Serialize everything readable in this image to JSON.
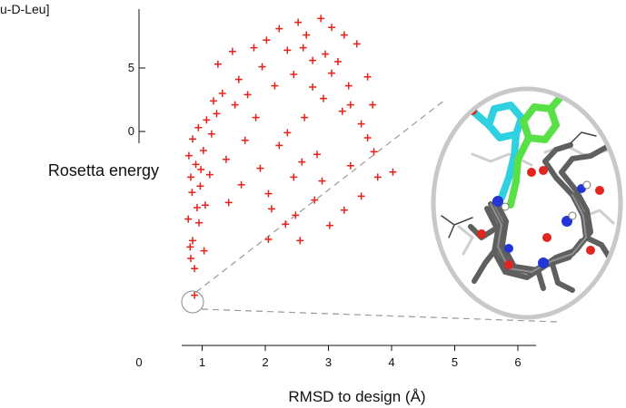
{
  "chart_data": {
    "type": "scatter",
    "title": "u-D-Leu]",
    "ylabel": "Rosetta energy",
    "xlabel": "RMSD to design (Å)",
    "xlim": [
      0,
      6.3
    ],
    "x_ticks": [
      0,
      1,
      2,
      3,
      4,
      5,
      6
    ],
    "x_tick_labels": [
      "0",
      "1",
      "2",
      "3",
      "4",
      "5",
      "6"
    ],
    "y_ticks": [
      5,
      0
    ],
    "y_tick_labels": [
      "5",
      "0"
    ],
    "marker": "plus",
    "marker_color": "#e8201a",
    "grid": false,
    "legend": "none",
    "highlighted_point": {
      "x": 0.88,
      "y": -12.9
    },
    "inset": {
      "kind": "molecular-structure-image",
      "shape": "ellipse",
      "callout_lines": "dashed"
    },
    "series": [
      {
        "values": [
          [
            0.88,
            -12.9
          ],
          [
            0.82,
            -10.0
          ],
          [
            0.81,
            -9.1
          ],
          [
            0.85,
            -8.6
          ],
          [
            0.95,
            -7.2
          ],
          [
            0.78,
            -6.9
          ],
          [
            0.92,
            -6.0
          ],
          [
            1.05,
            -5.8
          ],
          [
            0.84,
            -4.8
          ],
          [
            0.97,
            -4.3
          ],
          [
            0.82,
            -3.6
          ],
          [
            1.12,
            -3.4
          ],
          [
            0.9,
            -2.6
          ],
          [
            0.79,
            -1.9
          ],
          [
            1.02,
            -1.5
          ],
          [
            0.85,
            -0.6
          ],
          [
            1.15,
            -0.2
          ],
          [
            0.94,
            0.3
          ],
          [
            1.07,
            0.9
          ],
          [
            1.23,
            1.4
          ],
          [
            0.88,
            -10.8
          ],
          [
            1.03,
            -9.4
          ],
          [
            2.05,
            -8.5
          ],
          [
            2.32,
            -7.3
          ],
          [
            2.55,
            -8.6
          ],
          [
            2.1,
            -6.1
          ],
          [
            2.48,
            -6.6
          ],
          [
            3.02,
            -7.4
          ],
          [
            2.78,
            -5.4
          ],
          [
            3.25,
            -6.2
          ],
          [
            3.52,
            -5.1
          ],
          [
            3.78,
            -3.6
          ],
          [
            2.9,
            -3.9
          ],
          [
            3.35,
            -2.7
          ],
          [
            3.72,
            -1.6
          ],
          [
            4.02,
            -3.2
          ],
          [
            1.42,
            -5.6
          ],
          [
            1.62,
            -4.2
          ],
          [
            1.38,
            -2.2
          ],
          [
            1.68,
            -0.7
          ],
          [
            1.92,
            -2.9
          ],
          [
            2.22,
            -1.1
          ],
          [
            1.85,
            1.1
          ],
          [
            1.52,
            2.1
          ],
          [
            1.32,
            3.0
          ],
          [
            1.58,
            4.1
          ],
          [
            1.25,
            5.3
          ],
          [
            1.48,
            6.3
          ],
          [
            1.82,
            6.6
          ],
          [
            2.02,
            7.2
          ],
          [
            2.35,
            6.4
          ],
          [
            2.22,
            8.1
          ],
          [
            2.52,
            8.6
          ],
          [
            2.65,
            7.6
          ],
          [
            2.88,
            8.9
          ],
          [
            3.05,
            8.2
          ],
          [
            3.25,
            7.6
          ],
          [
            3.45,
            6.9
          ],
          [
            2.75,
            5.6
          ],
          [
            3.05,
            4.6
          ],
          [
            3.32,
            3.6
          ],
          [
            3.62,
            4.3
          ],
          [
            3.7,
            2.1
          ],
          [
            3.52,
            0.6
          ],
          [
            3.22,
            1.6
          ],
          [
            2.92,
            2.6
          ],
          [
            2.62,
            1.1
          ],
          [
            2.35,
            -0.1
          ],
          [
            2.75,
            3.5
          ],
          [
            3.15,
            5.5
          ],
          [
            2.45,
            4.5
          ],
          [
            2.15,
            3.6
          ],
          [
            1.95,
            5.1
          ],
          [
            2.6,
            6.6
          ],
          [
            2.95,
            6.1
          ],
          [
            3.35,
            2.1
          ],
          [
            2.05,
            -4.9
          ],
          [
            2.45,
            -3.6
          ],
          [
            1.72,
            2.9
          ],
          [
            3.62,
            -0.5
          ],
          [
            0.98,
            -3.0
          ],
          [
            1.18,
            2.4
          ],
          [
            2.82,
            -1.8
          ],
          [
            2.58,
            -2.4
          ]
        ]
      }
    ]
  }
}
